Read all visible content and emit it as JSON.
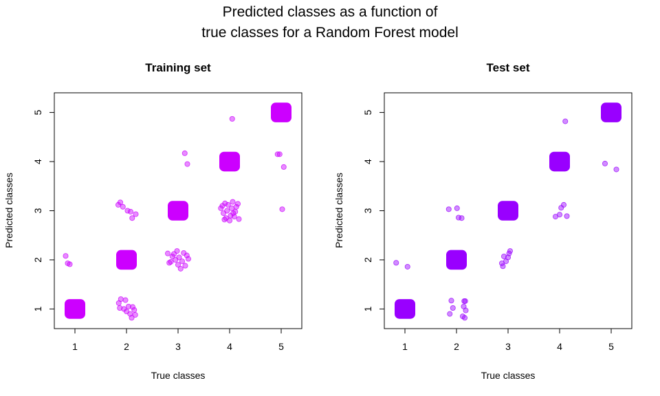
{
  "figure": {
    "title_line1": "Predicted classes as a function of",
    "title_line2": "true classes for a Random Forest model"
  },
  "chart_data": [
    {
      "type": "scatter",
      "title": "Training set",
      "xlabel": "True classes",
      "ylabel": "Predicted classes",
      "xlim": [
        0.6,
        5.4
      ],
      "ylim": [
        0.6,
        5.4
      ],
      "xticks": [
        1,
        2,
        3,
        4,
        5
      ],
      "yticks": [
        1,
        2,
        3,
        4,
        5
      ],
      "grid": false,
      "color": "#CC00FF",
      "dense_clusters": [
        {
          "x": 1,
          "y": 1,
          "half_width": 0.2
        },
        {
          "x": 2,
          "y": 2,
          "half_width": 0.2
        },
        {
          "x": 3,
          "y": 3,
          "half_width": 0.2
        },
        {
          "x": 4,
          "y": 4,
          "half_width": 0.2
        },
        {
          "x": 5,
          "y": 5,
          "half_width": 0.2
        }
      ],
      "points": [
        {
          "x": 0.82,
          "y": 2.08
        },
        {
          "x": 0.86,
          "y": 1.93
        },
        {
          "x": 0.9,
          "y": 1.91
        },
        {
          "x": 1.85,
          "y": 1.12
        },
        {
          "x": 1.87,
          "y": 1.02
        },
        {
          "x": 1.89,
          "y": 1.2
        },
        {
          "x": 1.95,
          "y": 1.0
        },
        {
          "x": 1.98,
          "y": 1.18
        },
        {
          "x": 2.0,
          "y": 0.95
        },
        {
          "x": 2.04,
          "y": 1.05
        },
        {
          "x": 2.07,
          "y": 0.9
        },
        {
          "x": 2.1,
          "y": 0.82
        },
        {
          "x": 2.12,
          "y": 1.04
        },
        {
          "x": 2.15,
          "y": 0.98
        },
        {
          "x": 2.17,
          "y": 0.88
        },
        {
          "x": 1.84,
          "y": 3.12
        },
        {
          "x": 1.88,
          "y": 3.17
        },
        {
          "x": 1.93,
          "y": 3.08
        },
        {
          "x": 2.02,
          "y": 3.0
        },
        {
          "x": 2.08,
          "y": 2.98
        },
        {
          "x": 2.11,
          "y": 2.85
        },
        {
          "x": 2.18,
          "y": 2.93
        },
        {
          "x": 2.8,
          "y": 2.13
        },
        {
          "x": 2.83,
          "y": 1.94
        },
        {
          "x": 2.86,
          "y": 1.96
        },
        {
          "x": 2.89,
          "y": 2.07
        },
        {
          "x": 2.92,
          "y": 2.12
        },
        {
          "x": 2.95,
          "y": 2.0
        },
        {
          "x": 2.98,
          "y": 2.18
        },
        {
          "x": 3.0,
          "y": 1.9
        },
        {
          "x": 3.02,
          "y": 2.05
        },
        {
          "x": 3.05,
          "y": 1.82
        },
        {
          "x": 3.08,
          "y": 1.97
        },
        {
          "x": 3.11,
          "y": 2.14
        },
        {
          "x": 3.14,
          "y": 1.88
        },
        {
          "x": 3.17,
          "y": 2.09
        },
        {
          "x": 3.2,
          "y": 2.02
        },
        {
          "x": 3.13,
          "y": 4.17
        },
        {
          "x": 3.18,
          "y": 3.95
        },
        {
          "x": 3.83,
          "y": 3.05
        },
        {
          "x": 3.86,
          "y": 3.1
        },
        {
          "x": 3.88,
          "y": 2.95
        },
        {
          "x": 3.91,
          "y": 3.15
        },
        {
          "x": 3.93,
          "y": 2.85
        },
        {
          "x": 3.95,
          "y": 3.0
        },
        {
          "x": 3.97,
          "y": 3.12
        },
        {
          "x": 4.0,
          "y": 2.8
        },
        {
          "x": 4.02,
          "y": 2.9
        },
        {
          "x": 4.04,
          "y": 3.05
        },
        {
          "x": 4.06,
          "y": 3.18
        },
        {
          "x": 4.09,
          "y": 2.88
        },
        {
          "x": 4.11,
          "y": 2.98
        },
        {
          "x": 4.13,
          "y": 3.08
        },
        {
          "x": 4.16,
          "y": 3.14
        },
        {
          "x": 4.18,
          "y": 2.83
        },
        {
          "x": 3.9,
          "y": 2.82
        },
        {
          "x": 4.07,
          "y": 2.95
        },
        {
          "x": 4.05,
          "y": 4.87
        },
        {
          "x": 4.93,
          "y": 4.15
        },
        {
          "x": 4.97,
          "y": 4.15
        },
        {
          "x": 5.05,
          "y": 3.89
        },
        {
          "x": 5.02,
          "y": 3.03
        }
      ]
    },
    {
      "type": "scatter",
      "title": "Test set",
      "xlabel": "True classes",
      "ylabel": "Predicted classes",
      "xlim": [
        0.6,
        5.4
      ],
      "ylim": [
        0.6,
        5.4
      ],
      "xticks": [
        1,
        2,
        3,
        4,
        5
      ],
      "yticks": [
        1,
        2,
        3,
        4,
        5
      ],
      "grid": false,
      "color": "#9900FF",
      "dense_clusters": [
        {
          "x": 1,
          "y": 1,
          "half_width": 0.2
        },
        {
          "x": 2,
          "y": 2,
          "half_width": 0.2
        },
        {
          "x": 3,
          "y": 3,
          "half_width": 0.2
        },
        {
          "x": 4,
          "y": 4,
          "half_width": 0.2
        },
        {
          "x": 5,
          "y": 5,
          "half_width": 0.2
        }
      ],
      "points": [
        {
          "x": 0.83,
          "y": 1.94
        },
        {
          "x": 1.05,
          "y": 1.86
        },
        {
          "x": 1.87,
          "y": 0.9
        },
        {
          "x": 1.9,
          "y": 1.17
        },
        {
          "x": 1.93,
          "y": 1.02
        },
        {
          "x": 2.12,
          "y": 0.85
        },
        {
          "x": 2.15,
          "y": 1.16
        },
        {
          "x": 2.16,
          "y": 0.82
        },
        {
          "x": 2.18,
          "y": 0.97
        },
        {
          "x": 2.14,
          "y": 1.05
        },
        {
          "x": 2.17,
          "y": 1.16
        },
        {
          "x": 1.85,
          "y": 3.03
        },
        {
          "x": 2.01,
          "y": 3.05
        },
        {
          "x": 2.04,
          "y": 2.86
        },
        {
          "x": 2.1,
          "y": 2.85
        },
        {
          "x": 2.88,
          "y": 1.93
        },
        {
          "x": 2.9,
          "y": 1.87
        },
        {
          "x": 2.92,
          "y": 2.07
        },
        {
          "x": 2.96,
          "y": 1.97
        },
        {
          "x": 3.0,
          "y": 2.05
        },
        {
          "x": 3.02,
          "y": 2.13
        },
        {
          "x": 3.04,
          "y": 2.18
        },
        {
          "x": 3.92,
          "y": 2.88
        },
        {
          "x": 4.0,
          "y": 2.92
        },
        {
          "x": 4.03,
          "y": 3.06
        },
        {
          "x": 4.08,
          "y": 3.12
        },
        {
          "x": 4.14,
          "y": 2.89
        },
        {
          "x": 4.11,
          "y": 4.82
        },
        {
          "x": 4.88,
          "y": 3.96
        },
        {
          "x": 5.1,
          "y": 3.84
        }
      ]
    }
  ]
}
